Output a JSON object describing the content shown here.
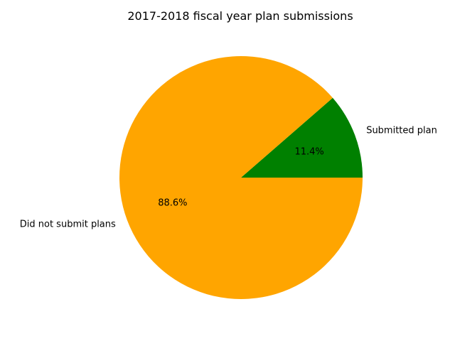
{
  "chart_data": {
    "type": "pie",
    "title": "2017-2018 fiscal year plan submissions",
    "slices": [
      {
        "label": "Submitted plan",
        "value": 11.4,
        "pct_label": "11.4%",
        "color": "#008000"
      },
      {
        "label": "Did not submit plans",
        "value": 88.6,
        "pct_label": "88.6%",
        "color": "#ffa500"
      }
    ],
    "start_angle_deg": 0,
    "direction": "counterclockwise"
  }
}
